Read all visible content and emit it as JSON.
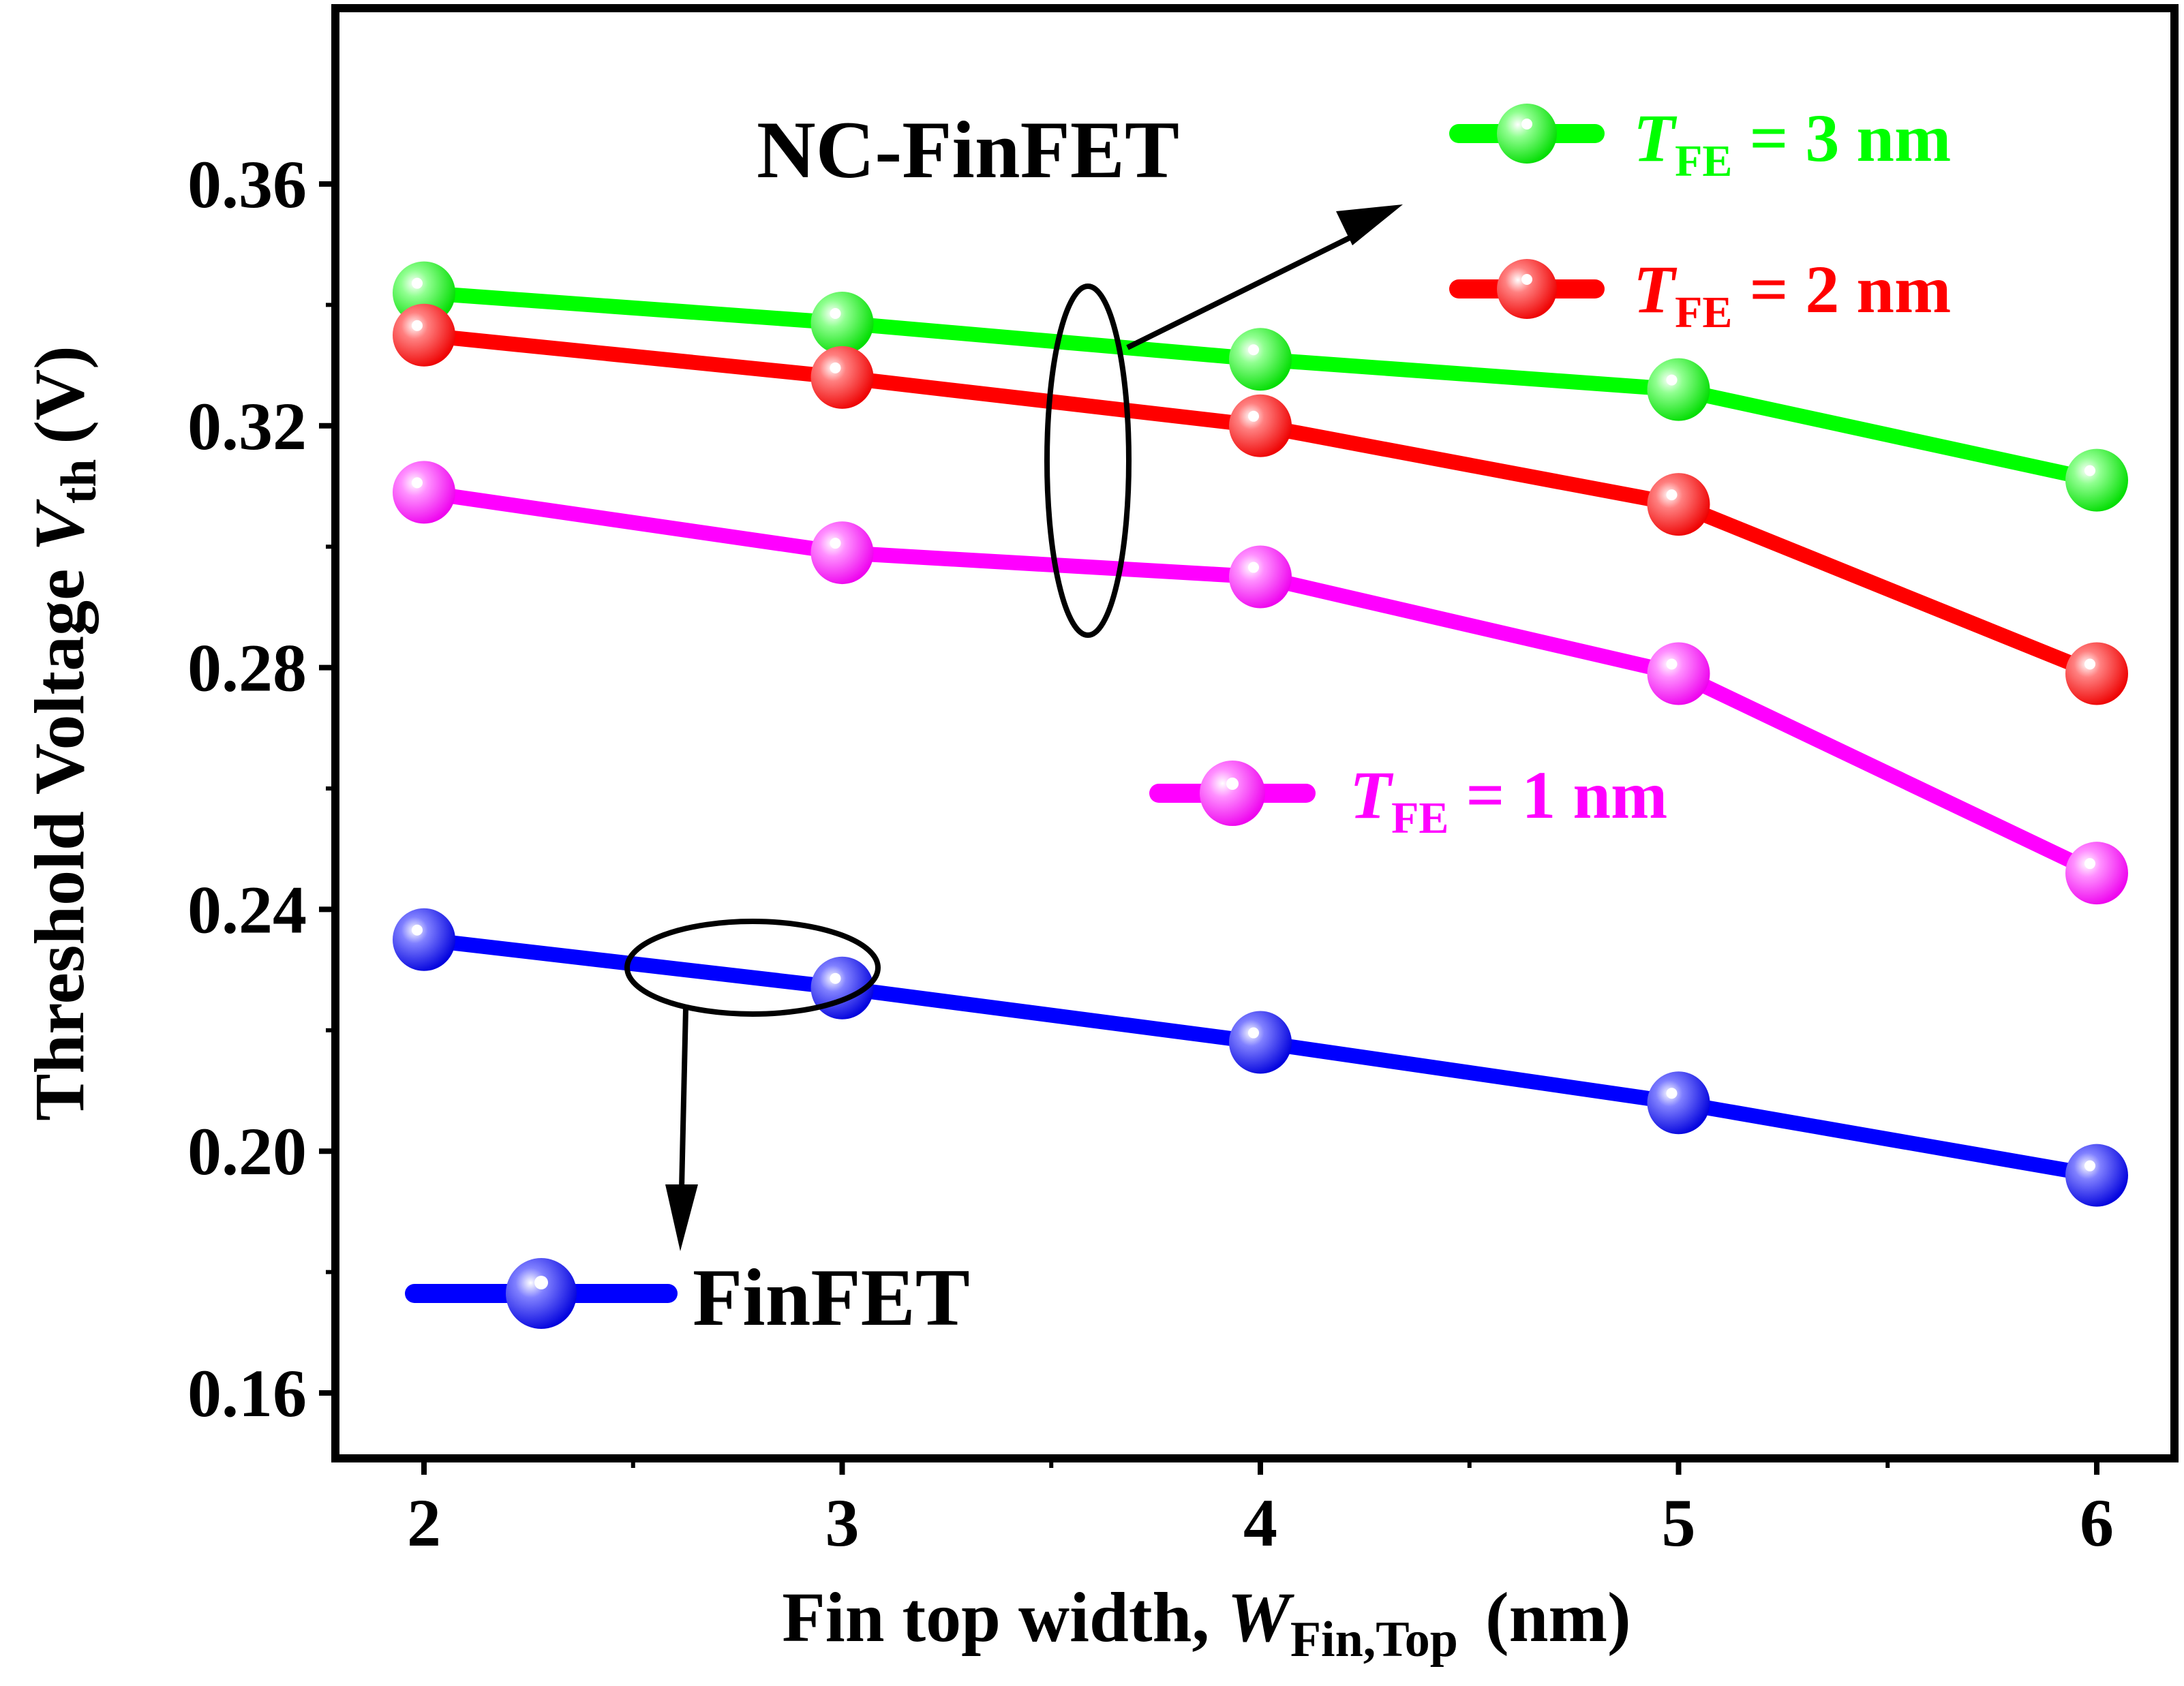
{
  "chart_data": {
    "type": "line",
    "title": "",
    "xlabel": {
      "main": "Fin top width, ",
      "var": "W",
      "sub": "Fin,Top",
      "unit": "(nm)"
    },
    "ylabel": {
      "main": "Threshold Voltage ",
      "var": "V",
      "sub": "th",
      "unit": "(V)"
    },
    "xlim": [
      1.8,
      6.2
    ],
    "ylim": [
      0.15,
      0.39
    ],
    "xticks": [
      2,
      3,
      4,
      5,
      6
    ],
    "xtick_labels": [
      "2",
      "3",
      "4",
      "5",
      "6"
    ],
    "yticks": [
      0.16,
      0.2,
      0.24,
      0.28,
      0.32,
      0.36
    ],
    "ytick_labels": [
      "0.16",
      "0.20",
      "0.24",
      "0.28",
      "0.32",
      "0.36"
    ],
    "x": [
      2,
      3,
      4,
      5,
      6
    ],
    "series": [
      {
        "name": "T_FE = 3 nm",
        "legend_var": "T",
        "legend_sub": "FE",
        "legend_rest": " = 3 nm",
        "color": "#00ff00",
        "values": [
          0.342,
          0.337,
          0.331,
          0.326,
          0.311
        ]
      },
      {
        "name": "T_FE = 2 nm",
        "legend_var": "T",
        "legend_sub": "FE",
        "legend_rest": " = 2 nm",
        "color": "#ff0000",
        "values": [
          0.335,
          0.328,
          0.32,
          0.307,
          0.279
        ]
      },
      {
        "name": "T_FE = 1 nm",
        "legend_var": "T",
        "legend_sub": "FE",
        "legend_rest": " = 1 nm",
        "color": "#ff00ff",
        "values": [
          0.309,
          0.299,
          0.295,
          0.279,
          0.246
        ]
      },
      {
        "name": "FinFET",
        "legend_text": "FinFET",
        "color": "#0000ff",
        "values": [
          0.235,
          0.227,
          0.218,
          0.208,
          0.196
        ]
      }
    ],
    "annotations": [
      "NC-FinFET",
      "FinFET"
    ],
    "legend": "inside-chart",
    "grid": false
  }
}
